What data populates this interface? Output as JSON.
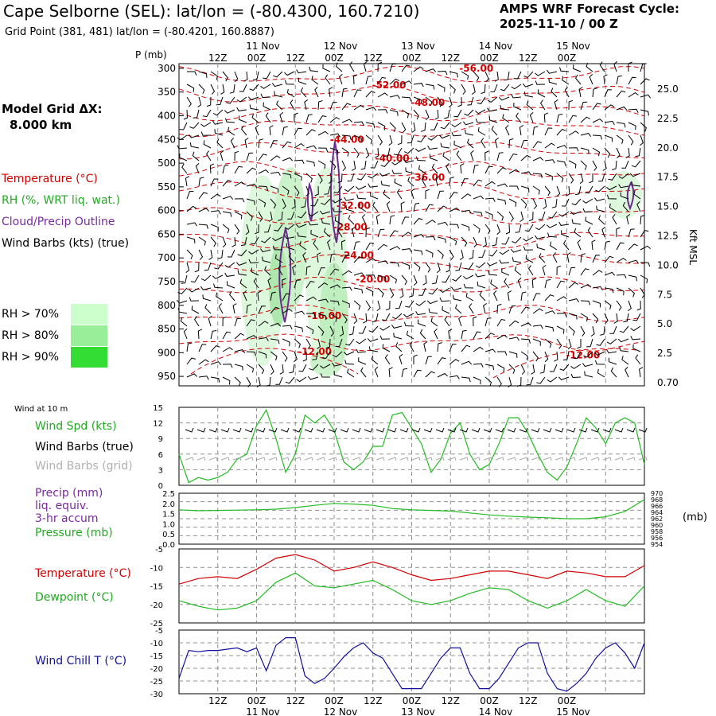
{
  "header": {
    "title": "Cape Selborne (SEL):  lat/lon = (-80.4300, 160.7210)",
    "subtitle": "Grid Point (381, 481) lat/lon = (-80.4201, 160.8887)",
    "cycle_line1": "AMPS WRF Forecast Cycle:",
    "cycle_line2": "2025-11-10 / 00  Z"
  },
  "left_panel": {
    "grid_line1": "Model Grid ΔX:",
    "grid_line2": "8.000 km",
    "temperature": "Temperature (°C)",
    "rh": "RH (%, WRT liq. wat.)",
    "cloud": "Cloud/Precip Outline",
    "wind_barbs": "Wind Barbs (kts) (true)",
    "rh_legend": [
      {
        "label": "RH > 70%",
        "color": "#ccffcc"
      },
      {
        "label": "RH > 80%",
        "color": "#99ee99"
      },
      {
        "label": "RH > 90%",
        "color": "#33dd33"
      }
    ]
  },
  "time_axis": {
    "hour_labels": [
      "12Z",
      "00Z",
      "12Z",
      "00Z",
      "12Z",
      "00Z",
      "12Z",
      "00Z",
      "12Z",
      "00Z"
    ],
    "day_labels": [
      "11 Nov",
      "12 Nov",
      "13 Nov",
      "14 Nov",
      "15 Nov"
    ]
  },
  "colors": {
    "temp": "#d40000",
    "rh": "#22aa22",
    "cloud": "#6a2a90",
    "wind_spd": "#22bb22",
    "dewpoint": "#22bb22",
    "windchill": "#1010a0",
    "grid": "#909090"
  },
  "chart_data": [
    {
      "type": "heatmap",
      "name": "sounding",
      "ylabel": "P (mb)",
      "ylabel_right": "Kft MSL",
      "p_ticks": [
        300,
        350,
        400,
        450,
        500,
        550,
        600,
        650,
        700,
        750,
        800,
        850,
        900,
        950
      ],
      "kft_ticks": [
        "25.0",
        "22.5",
        "20.0",
        "17.5",
        "15.0",
        "12.5",
        "10.0",
        "7.5",
        "5.0",
        "2.5",
        "0.70"
      ],
      "ylim": [
        290,
        970
      ],
      "temp_labels": [
        {
          "label": "-56.00",
          "t": 92,
          "p": 300
        },
        {
          "label": "-52.00",
          "t": 65,
          "p": 335
        },
        {
          "label": "-48.00",
          "t": 77,
          "p": 372
        },
        {
          "label": "-44.00",
          "t": 52,
          "p": 450
        },
        {
          "label": "-40.00",
          "t": 66,
          "p": 490
        },
        {
          "label": "-36.00",
          "t": 77,
          "p": 530
        },
        {
          "label": "-32.00",
          "t": 54,
          "p": 590
        },
        {
          "label": "-28.00",
          "t": 53,
          "p": 635
        },
        {
          "label": "-24.00",
          "t": 55,
          "p": 695
        },
        {
          "label": "-20.00",
          "t": 60,
          "p": 745
        },
        {
          "label": "-16.00",
          "t": 45,
          "p": 822
        },
        {
          "label": "-12.00",
          "t": 42,
          "p": 898
        },
        {
          "label": "-12.00",
          "t": 125,
          "p": 905
        }
      ]
    },
    {
      "type": "line",
      "name": "wind_10m",
      "title": "Wind at 10 m",
      "labels": [
        "Wind Spd (kts)",
        "Wind Barbs (true)",
        "Wind Barbs (grid)"
      ],
      "y_ticks": [
        0,
        3,
        6,
        9,
        12,
        15
      ],
      "ylim": [
        0,
        15
      ],
      "x": [
        0,
        3,
        6,
        9,
        12,
        15,
        18,
        21,
        24,
        27,
        30,
        33,
        36,
        39,
        42,
        45,
        48,
        51,
        54,
        57,
        60,
        63,
        66,
        69,
        72,
        75,
        78,
        81,
        84,
        87,
        90,
        93,
        96,
        99,
        102,
        105,
        108,
        111,
        114,
        117,
        120,
        123,
        126,
        129,
        132,
        135,
        138,
        141,
        144
      ],
      "series": [
        {
          "name": "Wind Spd (kts)",
          "values": [
            6,
            0.5,
            1.5,
            1,
            1.5,
            2.5,
            5,
            6,
            11.5,
            14.5,
            9,
            2.5,
            6,
            13.5,
            12,
            13.5,
            10.5,
            4.5,
            3,
            4.5,
            7.5,
            7.5,
            13.5,
            14,
            11,
            8,
            2.5,
            5,
            10,
            12,
            6,
            3,
            4,
            8,
            13,
            13,
            10,
            6,
            2.5,
            1,
            3.5,
            8,
            13,
            11,
            8,
            12,
            13,
            12,
            4
          ]
        }
      ]
    },
    {
      "type": "line",
      "name": "precip_pressure",
      "labels": [
        "Precip (mm)",
        "liq. equiv.",
        "3-hr accum",
        "Pressure (mb)"
      ],
      "y_ticks": [
        "0.0",
        "0.5",
        "1.0",
        "1.5",
        "2.0",
        "2.5"
      ],
      "y_right_ticks": [
        "954",
        "956",
        "958",
        "960",
        "962",
        "964",
        "966",
        "968",
        "970"
      ],
      "ylabel_right": "(mb)",
      "ylim": [
        954,
        970
      ],
      "x": [
        0,
        6,
        12,
        18,
        24,
        30,
        36,
        42,
        48,
        54,
        60,
        66,
        72,
        78,
        84,
        90,
        96,
        102,
        108,
        114,
        120,
        126,
        132,
        138,
        144
      ],
      "series": [
        {
          "name": "Pressure (mb)",
          "values": [
            964.8,
            964.5,
            964.6,
            964.7,
            964.8,
            965,
            965.5,
            966.2,
            966.8,
            966.6,
            966.2,
            965.2,
            964.8,
            964.6,
            964.4,
            963.8,
            963.2,
            962.8,
            962.5,
            962.3,
            962,
            962,
            962.6,
            964.3,
            968
          ]
        }
      ]
    },
    {
      "type": "line",
      "name": "temp_dew",
      "labels": [
        "Temperature (°C)",
        "Dewpoint (°C)"
      ],
      "y_ticks": [
        -5,
        -10,
        -15,
        -20,
        -25
      ],
      "ylim": [
        -25,
        -5
      ],
      "x": [
        0,
        6,
        12,
        18,
        24,
        30,
        36,
        42,
        48,
        54,
        60,
        66,
        72,
        78,
        84,
        90,
        96,
        102,
        108,
        114,
        120,
        126,
        132,
        138,
        144
      ],
      "series": [
        {
          "name": "Temperature (°C)",
          "values": [
            -14.5,
            -13,
            -12.5,
            -13,
            -10.5,
            -7.5,
            -6.5,
            -8,
            -11,
            -10,
            -8.5,
            -10,
            -12,
            -13.5,
            -13,
            -12,
            -11,
            -11,
            -12,
            -13,
            -11,
            -11.5,
            -12.5,
            -12.5,
            -9.5
          ]
        },
        {
          "name": "Dewpoint (°C)",
          "values": [
            -19,
            -20.5,
            -21.5,
            -21,
            -19,
            -14,
            -11.5,
            -15,
            -15.5,
            -14.5,
            -13.5,
            -16,
            -19,
            -20,
            -19,
            -17,
            -15.5,
            -16,
            -19,
            -21,
            -19,
            -16,
            -19,
            -20.5,
            -15
          ]
        }
      ]
    },
    {
      "type": "line",
      "name": "windchill",
      "labels": [
        "Wind Chill T (°C)"
      ],
      "y_ticks": [
        -5,
        -10,
        -15,
        -20,
        -25,
        -30
      ],
      "ylim": [
        -30,
        -5
      ],
      "x": [
        0,
        3,
        6,
        9,
        12,
        15,
        18,
        21,
        24,
        27,
        30,
        33,
        36,
        39,
        42,
        45,
        48,
        51,
        54,
        57,
        60,
        63,
        66,
        69,
        72,
        75,
        78,
        81,
        84,
        87,
        90,
        93,
        96,
        99,
        102,
        105,
        108,
        111,
        114,
        117,
        120,
        123,
        126,
        129,
        132,
        135,
        138,
        141,
        144
      ],
      "series": [
        {
          "name": "Wind Chill T (°C)",
          "values": [
            -24,
            -13,
            -13.5,
            -13,
            -13,
            -12.5,
            -12,
            -13.5,
            -12,
            -21,
            -11,
            -8,
            -8,
            -23,
            -26,
            -24,
            -20,
            -15.5,
            -12,
            -10,
            -14,
            -16,
            -22,
            -28,
            -28,
            -28,
            -22,
            -16,
            -12,
            -12,
            -22,
            -28,
            -28,
            -24,
            -18,
            -12,
            -10,
            -10,
            -22,
            -28,
            -29,
            -26,
            -22,
            -16,
            -12,
            -10,
            -14,
            -20,
            -10
          ]
        }
      ]
    }
  ],
  "panel_labels": {
    "wind_title": "Wind at 10 m",
    "wind_spd": "Wind Spd (kts)",
    "wind_barbs_true": "Wind Barbs (true)",
    "wind_barbs_grid": "Wind Barbs (grid)",
    "precip1": "Precip (mm)",
    "precip2": "liq. equiv.",
    "precip3": "3-hr accum",
    "pressure": "Pressure (mb)",
    "mb_unit": "(mb)",
    "temp": "Temperature (°C)",
    "dew": "Dewpoint (°C)",
    "windchill": "Wind Chill T (°C)",
    "p_unit": "P (mb)",
    "kft": "Kft MSL"
  }
}
